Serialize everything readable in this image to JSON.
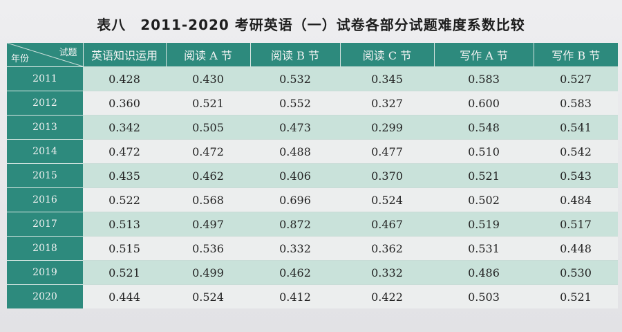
{
  "title": "表八　2011-2020 考研英语（一）试卷各部分试题难度系数比较",
  "header": {
    "corner_top": "试题",
    "corner_bottom": "年份",
    "columns": [
      "英语知识运用",
      "阅读 A 节",
      "阅读 B 节",
      "阅读 C 节",
      "写作 A 节",
      "写作 B 节"
    ]
  },
  "rows": [
    {
      "year": "2011",
      "values": [
        "0.428",
        "0.430",
        "0.532",
        "0.345",
        "0.583",
        "0.527"
      ]
    },
    {
      "year": "2012",
      "values": [
        "0.360",
        "0.521",
        "0.552",
        "0.327",
        "0.600",
        "0.583"
      ]
    },
    {
      "year": "2013",
      "values": [
        "0.342",
        "0.505",
        "0.473",
        "0.299",
        "0.548",
        "0.541"
      ]
    },
    {
      "year": "2014",
      "values": [
        "0.472",
        "0.472",
        "0.488",
        "0.477",
        "0.510",
        "0.542"
      ]
    },
    {
      "year": "2015",
      "values": [
        "0.435",
        "0.462",
        "0.406",
        "0.370",
        "0.521",
        "0.543"
      ]
    },
    {
      "year": "2016",
      "values": [
        "0.522",
        "0.568",
        "0.696",
        "0.524",
        "0.502",
        "0.484"
      ]
    },
    {
      "year": "2017",
      "values": [
        "0.513",
        "0.497",
        "0.872",
        "0.467",
        "0.519",
        "0.517"
      ]
    },
    {
      "year": "2018",
      "values": [
        "0.515",
        "0.536",
        "0.332",
        "0.362",
        "0.531",
        "0.448"
      ]
    },
    {
      "year": "2019",
      "values": [
        "0.521",
        "0.499",
        "0.462",
        "0.332",
        "0.486",
        "0.530"
      ]
    },
    {
      "year": "2020",
      "values": [
        "0.444",
        "0.524",
        "0.412",
        "0.422",
        "0.503",
        "0.521"
      ]
    }
  ],
  "colors": {
    "header_teal": "#2d8a7d",
    "band_green": "#c9e2da",
    "plain_row": "#eceeee"
  }
}
